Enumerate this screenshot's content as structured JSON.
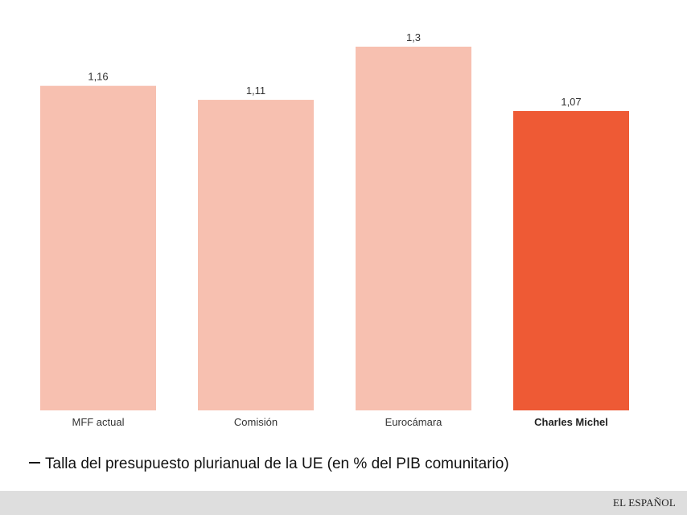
{
  "chart_data": {
    "type": "bar",
    "categories": [
      "MFF actual",
      "Comisión",
      "Eurocámara",
      "Charles Michel"
    ],
    "values": [
      1.16,
      1.11,
      1.3,
      1.07
    ],
    "value_labels": [
      "1,16",
      "1,11",
      "1,3",
      "1,07"
    ],
    "highlight_index": 3,
    "colors": {
      "default": "#f7c0b0",
      "highlight": "#ee5a35"
    },
    "ylim": [
      0,
      1.3
    ],
    "grid": false,
    "legend": "— Talla del presupuesto plurianual de la UE (en % del PIB comunitario)"
  },
  "legend_text": "Talla del presupuesto plurianual de la UE (en % del PIB comunitario)",
  "brand": "EL ESPAÑOL"
}
